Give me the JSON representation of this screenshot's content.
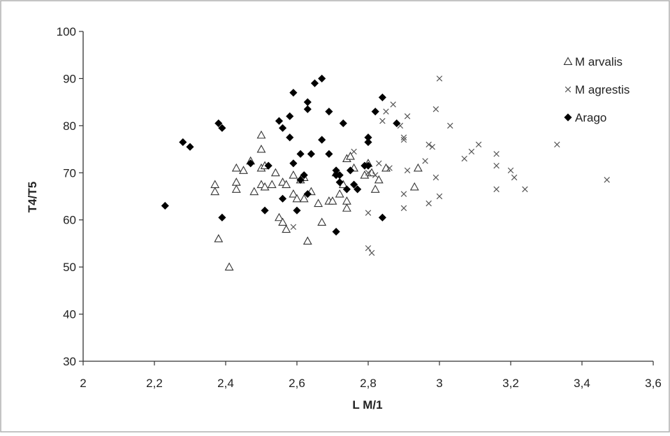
{
  "chart_data": {
    "type": "scatter",
    "xlabel": "L M/1",
    "ylabel": "T4/T5",
    "xlim": [
      2,
      3.6
    ],
    "ylim": [
      30,
      100
    ],
    "x_ticks": [
      2,
      2.2,
      2.4,
      2.6,
      2.8,
      3,
      3.2,
      3.4,
      3.6
    ],
    "x_tick_labels": [
      "2",
      "2,2",
      "2,4",
      "2,6",
      "2,8",
      "3",
      "3,2",
      "3,4",
      "3,6"
    ],
    "y_ticks": [
      30,
      40,
      50,
      60,
      70,
      80,
      90,
      100
    ],
    "y_tick_labels": [
      "30",
      "40",
      "50",
      "60",
      "70",
      "80",
      "90",
      "100"
    ],
    "grid": false,
    "legend_position": "top-right",
    "series": [
      {
        "name": "M arvalis",
        "marker": "triangle",
        "color": "#333333",
        "points": [
          [
            2.37,
            67.5
          ],
          [
            2.37,
            66.0
          ],
          [
            2.38,
            56.0
          ],
          [
            2.41,
            50.0
          ],
          [
            2.43,
            71.0
          ],
          [
            2.43,
            68.0
          ],
          [
            2.43,
            66.5
          ],
          [
            2.45,
            70.5
          ],
          [
            2.47,
            72.5
          ],
          [
            2.48,
            66.0
          ],
          [
            2.5,
            71.0
          ],
          [
            2.5,
            67.5
          ],
          [
            2.5,
            75.0
          ],
          [
            2.5,
            78.0
          ],
          [
            2.51,
            71.5
          ],
          [
            2.51,
            67.0
          ],
          [
            2.53,
            67.5
          ],
          [
            2.54,
            70.0
          ],
          [
            2.55,
            60.5
          ],
          [
            2.56,
            59.5
          ],
          [
            2.56,
            68.0
          ],
          [
            2.57,
            58.0
          ],
          [
            2.57,
            67.5
          ],
          [
            2.59,
            65.5
          ],
          [
            2.59,
            69.5
          ],
          [
            2.6,
            64.5
          ],
          [
            2.61,
            68.5
          ],
          [
            2.62,
            64.5
          ],
          [
            2.62,
            69.0
          ],
          [
            2.63,
            55.5
          ],
          [
            2.64,
            66.0
          ],
          [
            2.66,
            63.5
          ],
          [
            2.67,
            59.5
          ],
          [
            2.69,
            64.0
          ],
          [
            2.7,
            64.0
          ],
          [
            2.71,
            70.0
          ],
          [
            2.72,
            65.5
          ],
          [
            2.73,
            67.5
          ],
          [
            2.74,
            62.5
          ],
          [
            2.74,
            64.0
          ],
          [
            2.74,
            73.0
          ],
          [
            2.75,
            73.5
          ],
          [
            2.76,
            71.0
          ],
          [
            2.79,
            69.5
          ],
          [
            2.8,
            72.0
          ],
          [
            2.81,
            70.0
          ],
          [
            2.82,
            66.5
          ],
          [
            2.83,
            68.5
          ],
          [
            2.85,
            71.0
          ],
          [
            2.93,
            67.0
          ],
          [
            2.94,
            71.0
          ]
        ]
      },
      {
        "name": "M agrestis",
        "marker": "x",
        "color": "#555555",
        "points": [
          [
            2.59,
            58.5
          ],
          [
            2.76,
            74.5
          ],
          [
            2.8,
            54.0
          ],
          [
            2.81,
            53.0
          ],
          [
            2.8,
            61.5
          ],
          [
            2.8,
            70.0
          ],
          [
            2.82,
            69.5
          ],
          [
            2.84,
            81.0
          ],
          [
            2.85,
            83.0
          ],
          [
            2.87,
            84.5
          ],
          [
            2.89,
            80.0
          ],
          [
            2.9,
            77.5
          ],
          [
            2.9,
            77.0
          ],
          [
            2.9,
            65.5
          ],
          [
            2.9,
            62.5
          ],
          [
            2.91,
            70.5
          ],
          [
            2.91,
            82.0
          ],
          [
            2.96,
            72.5
          ],
          [
            2.97,
            76.0
          ],
          [
            2.97,
            63.5
          ],
          [
            2.98,
            75.5
          ],
          [
            2.99,
            83.5
          ],
          [
            2.99,
            69.0
          ],
          [
            3.0,
            90.0
          ],
          [
            3.0,
            65.0
          ],
          [
            3.03,
            80.0
          ],
          [
            3.07,
            73.0
          ],
          [
            3.09,
            74.5
          ],
          [
            3.11,
            76.0
          ],
          [
            3.16,
            74.0
          ],
          [
            3.16,
            71.5
          ],
          [
            3.16,
            66.5
          ],
          [
            3.2,
            70.5
          ],
          [
            3.21,
            69.0
          ],
          [
            3.24,
            66.5
          ],
          [
            3.33,
            76.0
          ],
          [
            3.47,
            68.5
          ],
          [
            2.86,
            71.0
          ],
          [
            2.83,
            72.0
          ]
        ]
      },
      {
        "name": "Arago",
        "marker": "diamond",
        "color": "#000000",
        "points": [
          [
            2.23,
            63.0
          ],
          [
            2.28,
            76.5
          ],
          [
            2.3,
            75.5
          ],
          [
            2.38,
            80.5
          ],
          [
            2.39,
            79.5
          ],
          [
            2.39,
            60.5
          ],
          [
            2.47,
            72.0
          ],
          [
            2.51,
            62.0
          ],
          [
            2.52,
            71.5
          ],
          [
            2.55,
            81.0
          ],
          [
            2.56,
            79.5
          ],
          [
            2.56,
            64.5
          ],
          [
            2.58,
            82.0
          ],
          [
            2.58,
            77.5
          ],
          [
            2.59,
            87.0
          ],
          [
            2.59,
            72.0
          ],
          [
            2.6,
            62.0
          ],
          [
            2.61,
            74.0
          ],
          [
            2.61,
            68.5
          ],
          [
            2.62,
            69.5
          ],
          [
            2.63,
            65.5
          ],
          [
            2.63,
            85.0
          ],
          [
            2.63,
            83.5
          ],
          [
            2.64,
            74.0
          ],
          [
            2.65,
            89.0
          ],
          [
            2.67,
            90.0
          ],
          [
            2.67,
            77.0
          ],
          [
            2.69,
            83.0
          ],
          [
            2.69,
            74.0
          ],
          [
            2.71,
            70.5
          ],
          [
            2.71,
            69.5
          ],
          [
            2.71,
            57.5
          ],
          [
            2.72,
            68.0
          ],
          [
            2.73,
            80.5
          ],
          [
            2.74,
            66.5
          ],
          [
            2.75,
            70.5
          ],
          [
            2.76,
            67.5
          ],
          [
            2.77,
            66.5
          ],
          [
            2.79,
            71.5
          ],
          [
            2.8,
            71.5
          ],
          [
            2.8,
            77.5
          ],
          [
            2.8,
            76.5
          ],
          [
            2.82,
            83.0
          ],
          [
            2.84,
            86.0
          ],
          [
            2.84,
            60.5
          ],
          [
            2.88,
            80.5
          ],
          [
            2.72,
            69.5
          ]
        ]
      }
    ]
  }
}
